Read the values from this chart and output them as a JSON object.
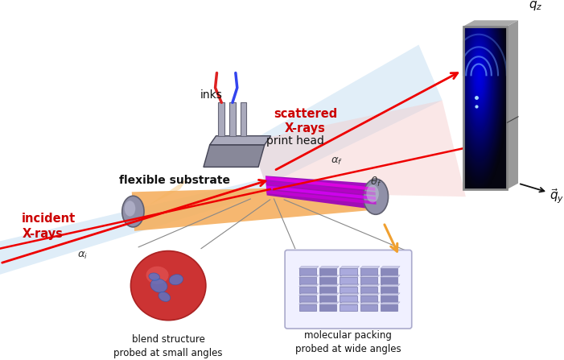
{
  "bg_color": "#ffffff",
  "labels": {
    "incident_xrays": "incident\nX-rays",
    "scattered_xrays": "scattered\nX-rays",
    "inks": "inks",
    "print_head": "print head",
    "flexible_substrate": "flexible substrate",
    "blend_structure": "blend structure\nprobed at small angles",
    "molecular_packing": "molecular packing\nprobed at wide angles"
  },
  "colors": {
    "xray_beam": "#ee0000",
    "light_blue": "#b8d8f0",
    "light_pink": "#f5c8c8",
    "purple1": "#cc00cc",
    "purple2": "#9900bb",
    "purple3": "#aa00ee",
    "orange_sub": "#f5b060",
    "gray_roller": "#9090a8",
    "gray_roller_dark": "#606070",
    "print_head_gray": "#888899",
    "ink_red": "#dd2222",
    "ink_blue": "#3344ee",
    "det_gray": "#888888",
    "det_gray_side": "#aaaaaa",
    "label_red": "#cc0000",
    "label_black": "#111111",
    "orange_arrow": "#f0a030",
    "line_gray": "#888888"
  }
}
